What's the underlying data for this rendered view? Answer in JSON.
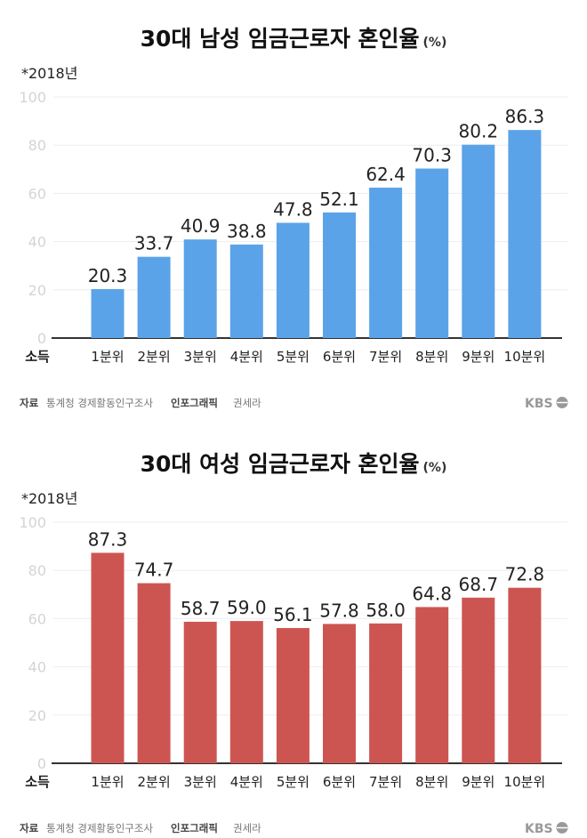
{
  "chart_data": [
    {
      "type": "bar",
      "title": "30대 남성 임금근로자 혼인율",
      "unit": "(%)",
      "note": "*2018년",
      "xlabel": "소득",
      "categories": [
        "1분위",
        "2분위",
        "3분위",
        "4분위",
        "5분위",
        "6분위",
        "7분위",
        "8분위",
        "9분위",
        "10분위"
      ],
      "values": [
        20.3,
        33.7,
        40.9,
        38.8,
        47.8,
        52.1,
        62.4,
        70.3,
        80.2,
        86.3
      ],
      "value_labels": [
        "20.3",
        "33.7",
        "40.9",
        "38.8",
        "47.8",
        "52.1",
        "62.4",
        "70.3",
        "80.2",
        "86.3"
      ],
      "ylim": [
        0,
        100
      ],
      "yticks": [
        "0",
        "20",
        "40",
        "60",
        "80",
        "100"
      ],
      "grid": true,
      "color": "#5ba3e8",
      "source_label": "자료",
      "source": "통계청 경제활동인구조사",
      "credit_label": "인포그래픽",
      "credit": "권세라",
      "logo": "KBS"
    },
    {
      "type": "bar",
      "title": "30대 여성 임금근로자 혼인율",
      "unit": "(%)",
      "note": "*2018년",
      "xlabel": "소득",
      "categories": [
        "1분위",
        "2분위",
        "3분위",
        "4분위",
        "5분위",
        "6분위",
        "7분위",
        "8분위",
        "9분위",
        "10분위"
      ],
      "values": [
        87.3,
        74.7,
        58.7,
        59.0,
        56.1,
        57.8,
        58.0,
        64.8,
        68.7,
        72.8
      ],
      "value_labels": [
        "87.3",
        "74.7",
        "58.7",
        "59.0",
        "56.1",
        "57.8",
        "58.0",
        "64.8",
        "68.7",
        "72.8"
      ],
      "ylim": [
        0,
        100
      ],
      "yticks": [
        "0",
        "20",
        "40",
        "60",
        "80",
        "100"
      ],
      "grid": true,
      "color": "#cd5551",
      "source_label": "자료",
      "source": "통계청 경제활동인구조사",
      "credit_label": "인포그래픽",
      "credit": "권세라",
      "logo": "KBS"
    }
  ]
}
